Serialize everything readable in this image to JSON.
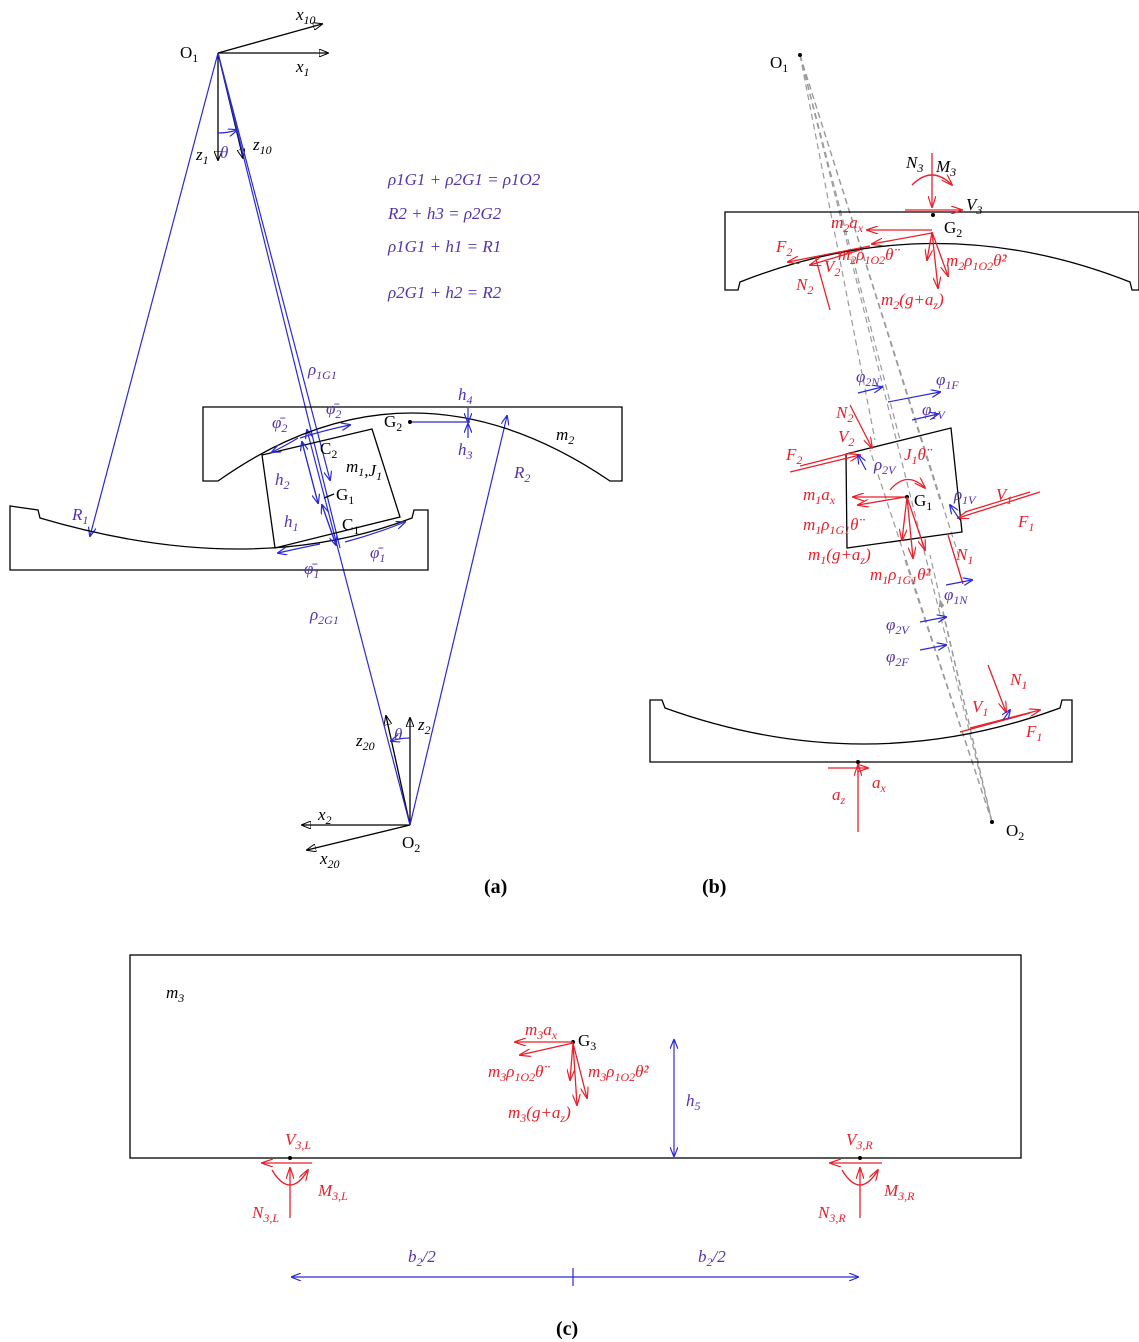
{
  "panels": {
    "a": "(a)",
    "b": "(b)",
    "c": "(c)"
  },
  "equations": [
    "ρ1G1 + ρ2G1 = ρ1O2",
    "R2 + h3 = ρ2G2",
    "ρ1G1 + h1 = R1",
    "ρ2G1 + h2 = R2"
  ],
  "colors": {
    "force": "#e8202a",
    "geometry": "#2a2ad8",
    "equation": "#5533aa",
    "outline": "#000000",
    "path": "#9a9a9a"
  }
}
